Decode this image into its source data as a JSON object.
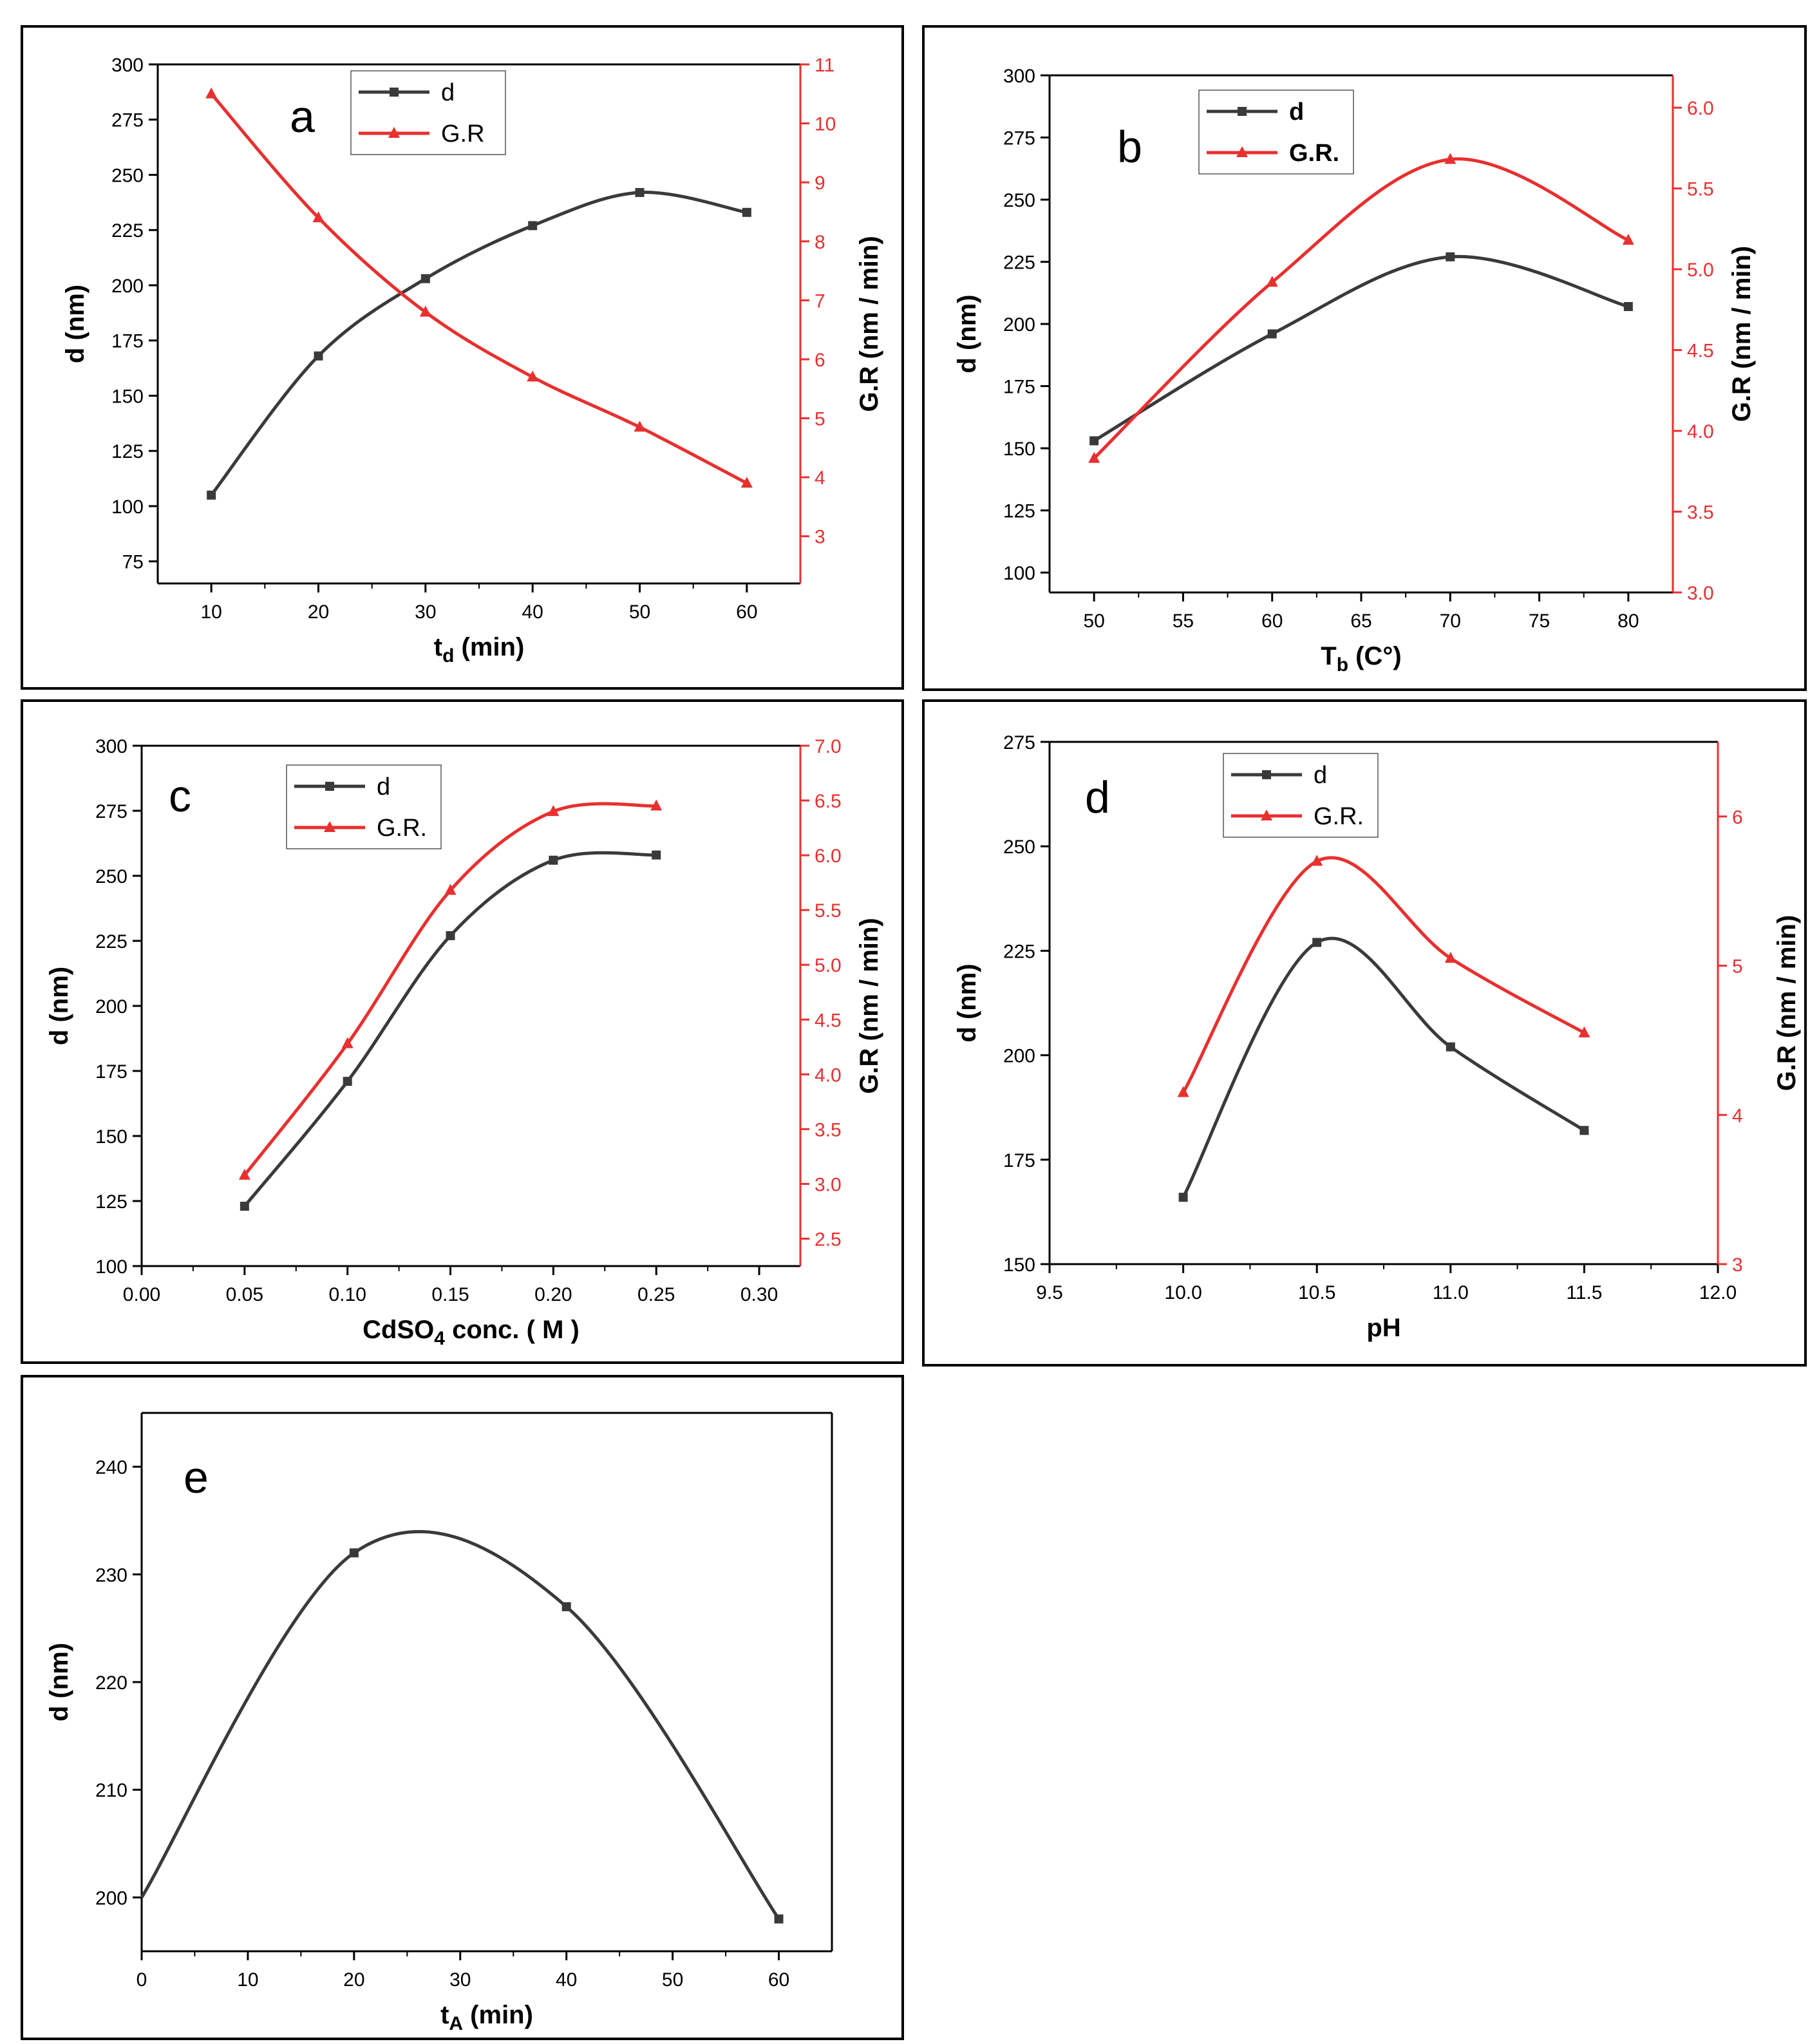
{
  "colors": {
    "d": "#3a3a3a",
    "gr": "#e8302f",
    "frame": "#000000"
  },
  "chart_data": [
    {
      "id": "a",
      "type": "line",
      "panel_label": "a",
      "xlabel_main": "t",
      "xlabel_sub": "d",
      "xlabel_rest": " (min)",
      "ylabel": "d (nm)",
      "y2label": "G.R (nm / min)",
      "xlim": [
        5,
        65
      ],
      "ylim": [
        65,
        300
      ],
      "y2lim": [
        2.2,
        11
      ],
      "xticks": [
        "10",
        "20",
        "30",
        "40",
        "50",
        "60"
      ],
      "xtick_values": [
        10,
        20,
        30,
        40,
        50,
        60
      ],
      "yticks": [
        "75",
        "100",
        "125",
        "150",
        "175",
        "200",
        "225",
        "250",
        "275",
        "300"
      ],
      "ytick_values": [
        75,
        100,
        125,
        150,
        175,
        200,
        225,
        250,
        275,
        300
      ],
      "y2ticks": [
        "3",
        "4",
        "5",
        "6",
        "7",
        "8",
        "9",
        "10",
        "11"
      ],
      "y2tick_values": [
        3,
        4,
        5,
        6,
        7,
        8,
        9,
        10,
        11
      ],
      "legend": {
        "d": "d",
        "gr": "G.R",
        "bold": false,
        "position": "top-center"
      },
      "series": [
        {
          "key": "d",
          "name": "d",
          "axis": "left",
          "marker": "square",
          "x": [
            10,
            20,
            30,
            40,
            50,
            60
          ],
          "y": [
            105,
            168,
            203,
            227,
            242,
            233
          ]
        },
        {
          "key": "gr",
          "name": "G.R",
          "axis": "right",
          "marker": "triangle",
          "x": [
            10,
            20,
            30,
            40,
            50,
            60
          ],
          "y": [
            10.5,
            8.4,
            6.8,
            5.7,
            4.85,
            3.9
          ]
        }
      ]
    },
    {
      "id": "b",
      "type": "line",
      "panel_label": "b",
      "xlabel_main": "T",
      "xlabel_sub": "b",
      "xlabel_rest": " (C°)",
      "ylabel": "d (nm)",
      "y2label": "G.R (nm / min)",
      "xlim": [
        47.5,
        82.5
      ],
      "ylim": [
        92,
        300
      ],
      "y2lim": [
        3.0,
        6.2
      ],
      "xticks": [
        "50",
        "55",
        "60",
        "65",
        "70",
        "75",
        "80"
      ],
      "xtick_values": [
        50,
        55,
        60,
        65,
        70,
        75,
        80
      ],
      "yticks": [
        "100",
        "125",
        "150",
        "175",
        "200",
        "225",
        "250",
        "275",
        "300"
      ],
      "ytick_values": [
        100,
        125,
        150,
        175,
        200,
        225,
        250,
        275,
        300
      ],
      "y2ticks": [
        "3.0",
        "3.5",
        "4.0",
        "4.5",
        "5.0",
        "5.5",
        "6.0"
      ],
      "y2tick_values": [
        3.0,
        3.5,
        4.0,
        4.5,
        5.0,
        5.5,
        6.0
      ],
      "legend": {
        "d": "d",
        "gr": "G.R.",
        "bold": true,
        "position": "top-center"
      },
      "series": [
        {
          "key": "d",
          "name": "d",
          "axis": "left",
          "marker": "square",
          "x": [
            50,
            60,
            70,
            80
          ],
          "y": [
            153,
            196,
            227,
            207
          ]
        },
        {
          "key": "gr",
          "name": "G.R.",
          "axis": "right",
          "marker": "triangle",
          "x": [
            50,
            60,
            70,
            80
          ],
          "y": [
            3.83,
            4.92,
            5.68,
            5.18
          ]
        }
      ]
    },
    {
      "id": "c",
      "type": "line",
      "panel_label": "c",
      "xlabel_main": "CdSO",
      "xlabel_sub": "4",
      "xlabel_rest": " conc. ( M )",
      "ylabel": "d (nm)",
      "y2label": "G.R (nm / min)",
      "xlim": [
        0,
        0.32
      ],
      "ylim": [
        100,
        300
      ],
      "y2lim": [
        2.25,
        7.0
      ],
      "xticks": [
        "0.00",
        "0.05",
        "0.10",
        "0.15",
        "0.20",
        "0.25",
        "0.30"
      ],
      "xtick_values": [
        0,
        0.05,
        0.1,
        0.15,
        0.2,
        0.25,
        0.3
      ],
      "yticks": [
        "100",
        "125",
        "150",
        "175",
        "200",
        "225",
        "250",
        "275",
        "300"
      ],
      "ytick_values": [
        100,
        125,
        150,
        175,
        200,
        225,
        250,
        275,
        300
      ],
      "y2ticks": [
        "2.5",
        "3.0",
        "3.5",
        "4.0",
        "4.5",
        "5.0",
        "5.5",
        "6.0",
        "6.5",
        "7.0"
      ],
      "y2tick_values": [
        2.5,
        3.0,
        3.5,
        4.0,
        4.5,
        5.0,
        5.5,
        6.0,
        6.5,
        7.0
      ],
      "legend": {
        "d": "d",
        "gr": "G.R.",
        "bold": false,
        "position": "top-center"
      },
      "series": [
        {
          "key": "d",
          "name": "d",
          "axis": "left",
          "marker": "square",
          "x": [
            0.05,
            0.1,
            0.15,
            0.2,
            0.25
          ],
          "y": [
            123,
            171,
            227,
            256,
            258
          ]
        },
        {
          "key": "gr",
          "name": "G.R.",
          "axis": "right",
          "marker": "triangle",
          "x": [
            0.05,
            0.1,
            0.15,
            0.2,
            0.25
          ],
          "y": [
            3.08,
            4.28,
            5.68,
            6.4,
            6.45
          ]
        }
      ]
    },
    {
      "id": "d",
      "type": "line",
      "panel_label": "d",
      "xlabel_main": "pH",
      "xlabel_sub": "",
      "xlabel_rest": "",
      "ylabel": "d (nm)",
      "y2label": "G.R (nm / min)",
      "xlim": [
        9.5,
        12.0
      ],
      "ylim": [
        150,
        275
      ],
      "y2lim": [
        3,
        6.5
      ],
      "xticks": [
        "9.5",
        "10.0",
        "10.5",
        "11.0",
        "11.5",
        "12.0"
      ],
      "xtick_values": [
        9.5,
        10.0,
        10.5,
        11.0,
        11.5,
        12.0
      ],
      "yticks": [
        "150",
        "175",
        "200",
        "225",
        "250",
        "275"
      ],
      "ytick_values": [
        150,
        175,
        200,
        225,
        250,
        275
      ],
      "y2ticks": [
        "3",
        "4",
        "5",
        "6"
      ],
      "y2tick_values": [
        3,
        4,
        5,
        6
      ],
      "legend": {
        "d": "d",
        "gr": "G.R.",
        "bold": false,
        "position": "top-center"
      },
      "series": [
        {
          "key": "d",
          "name": "d",
          "axis": "left",
          "marker": "square",
          "x": [
            10.0,
            10.5,
            11.0,
            11.5
          ],
          "y": [
            166,
            227,
            202,
            182
          ]
        },
        {
          "key": "gr",
          "name": "G.R.",
          "axis": "right",
          "marker": "triangle",
          "x": [
            10.0,
            10.5,
            11.0,
            11.5
          ],
          "y": [
            4.15,
            5.7,
            5.05,
            4.55
          ]
        }
      ]
    },
    {
      "id": "e",
      "type": "line",
      "panel_label": "e",
      "xlabel_main": "t",
      "xlabel_sub": "A",
      "xlabel_rest": " (min)",
      "ylabel": "d (nm)",
      "y2label": "",
      "xlim": [
        0,
        65
      ],
      "ylim": [
        195,
        245
      ],
      "y2lim": null,
      "xticks": [
        "0",
        "10",
        "20",
        "30",
        "40",
        "50",
        "60"
      ],
      "xtick_values": [
        0,
        10,
        20,
        30,
        40,
        50,
        60
      ],
      "yticks": [
        "200",
        "210",
        "220",
        "230",
        "240"
      ],
      "ytick_values": [
        200,
        210,
        220,
        230,
        240
      ],
      "y2ticks": [],
      "y2tick_values": [],
      "legend": null,
      "series": [
        {
          "key": "d",
          "name": "",
          "axis": "left",
          "marker": "square",
          "x": [
            0,
            20,
            40,
            60
          ],
          "y": [
            200,
            232,
            227,
            198
          ],
          "first_marker": false
        }
      ]
    }
  ]
}
